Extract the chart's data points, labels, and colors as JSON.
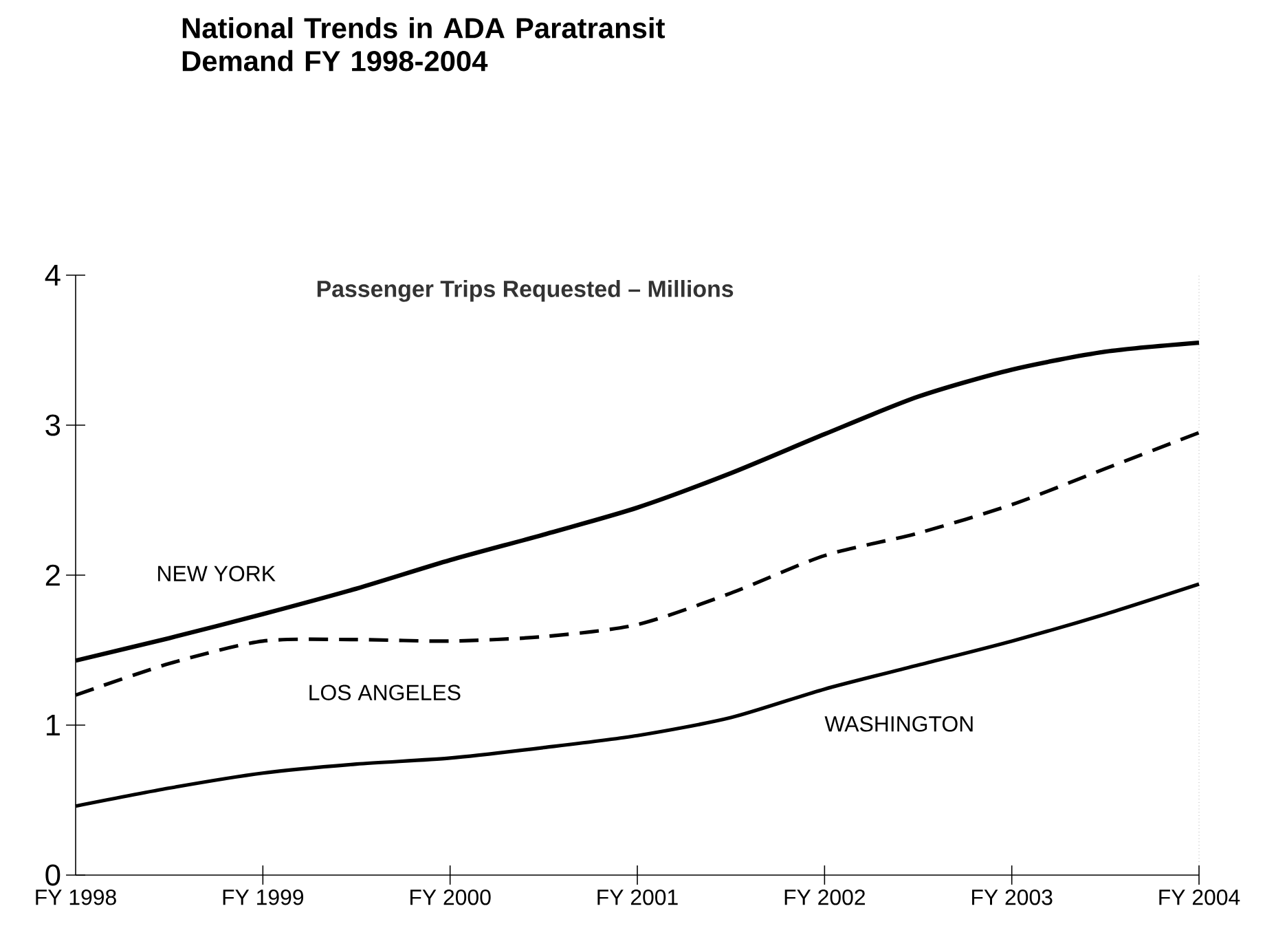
{
  "chart_data": {
    "type": "line",
    "title": "National Trends in ADA Paratransit Demand FY 1998-2004",
    "subtitle": "Passenger Trips Requested – Millions",
    "categories": [
      "FY 1998",
      null,
      "FY 1999",
      null,
      "FY 2000",
      null,
      "FY 2001",
      null,
      "FY 2002",
      null,
      "FY 2003",
      null,
      "FY 2004"
    ],
    "series": [
      {
        "name": "NEW YORK",
        "color": "#000000",
        "line_style": "solid",
        "values": [
          1.43,
          1.58,
          1.74,
          1.91,
          2.1,
          2.27,
          2.45,
          2.68,
          2.94,
          3.19,
          3.37,
          3.49,
          3.55
        ]
      },
      {
        "name": "LOS ANGELES",
        "color": "#000000",
        "line_style": "dashed",
        "values": [
          1.2,
          1.41,
          1.56,
          1.57,
          1.56,
          1.59,
          1.67,
          1.88,
          2.13,
          2.28,
          2.47,
          2.71,
          2.95
        ]
      },
      {
        "name": "WASHINGTON",
        "color": "#000000",
        "line_style": "solid",
        "values": [
          0.46,
          0.58,
          0.68,
          0.74,
          0.78,
          0.85,
          0.93,
          1.05,
          1.24,
          1.4,
          1.56,
          1.74,
          1.94
        ]
      }
    ],
    "ylim": [
      0,
      4
    ],
    "yticks": [
      0,
      1,
      2,
      3,
      4
    ],
    "grid": false,
    "marker": "none"
  }
}
